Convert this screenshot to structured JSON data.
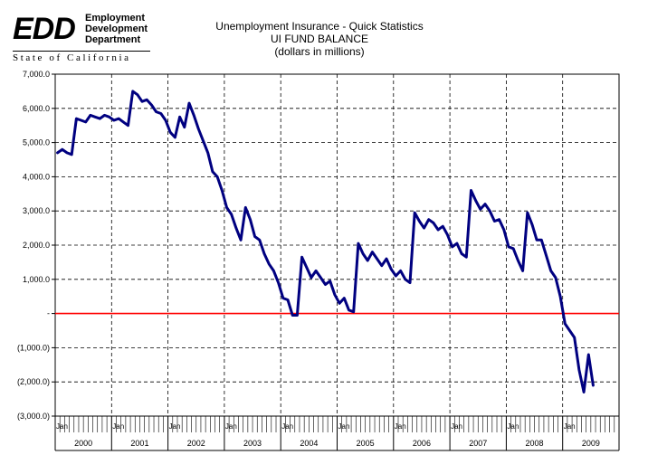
{
  "logo": {
    "mark": "EDD",
    "line1": "Employment",
    "line2": "Development",
    "line3": "Department",
    "state": "State of California"
  },
  "colors": {
    "series": "#000080",
    "zero_line": "#ff0000",
    "grid": "#000000"
  },
  "chart_data": {
    "type": "line",
    "title": "Unemployment Insurance - Quick Statistics",
    "subtitle": "UI FUND BALANCE",
    "units": "(dollars in millions)",
    "xlabel": "",
    "ylabel": "",
    "ylim": [
      -3000,
      7000
    ],
    "y_tick_values": [
      7000,
      6000,
      5000,
      4000,
      3000,
      2000,
      1000,
      0,
      -1000,
      -2000,
      -3000
    ],
    "y_tick_labels": [
      "7,000.0",
      "6,000.0",
      "5,000.0",
      "4,000.0",
      "3,000.0",
      "2,000.0",
      "1,000.0",
      "-",
      "(1,000.0)",
      "(2,000.0)",
      "(3,000.0)"
    ],
    "month_tick_label": "Jan",
    "years": [
      "2000",
      "2001",
      "2002",
      "2003",
      "2004",
      "2005",
      "2006",
      "2007",
      "2008",
      "2009"
    ],
    "grid": true,
    "reference_line": 0,
    "x_start": "2000-01",
    "series": [
      {
        "values": [
          4700,
          4800,
          4700,
          4650,
          5700,
          5650,
          5600,
          5800,
          5750,
          5700,
          5800,
          5750,
          5650,
          5700,
          5600,
          5500,
          6500,
          6400,
          6200,
          6250,
          6100,
          5900,
          5850,
          5650,
          5300,
          5150,
          5750,
          5450,
          6150,
          5800,
          5400,
          5050,
          4700,
          4150,
          4000,
          3600,
          3100,
          2900,
          2500,
          2150,
          3100,
          2750,
          2250,
          2150,
          1750,
          1450,
          1250,
          900,
          450,
          400,
          -50,
          -50,
          1650,
          1350,
          1050,
          1250,
          1050,
          850,
          950,
          550,
          300,
          450,
          100,
          50,
          2050,
          1750,
          1550,
          1800,
          1600,
          1400,
          1600,
          1300,
          1100,
          1250,
          1000,
          900,
          2950,
          2700,
          2500,
          2750,
          2650,
          2450,
          2550,
          2300,
          1950,
          2050,
          1750,
          1650,
          3600,
          3300,
          3050,
          3200,
          3000,
          2700,
          2750,
          2450,
          1950,
          1900,
          1550,
          1250,
          2950,
          2600,
          2150,
          2150,
          1700,
          1250,
          1050,
          500,
          -300,
          -500,
          -700,
          -1650,
          -2300,
          -1200,
          -2100
        ]
      }
    ]
  }
}
